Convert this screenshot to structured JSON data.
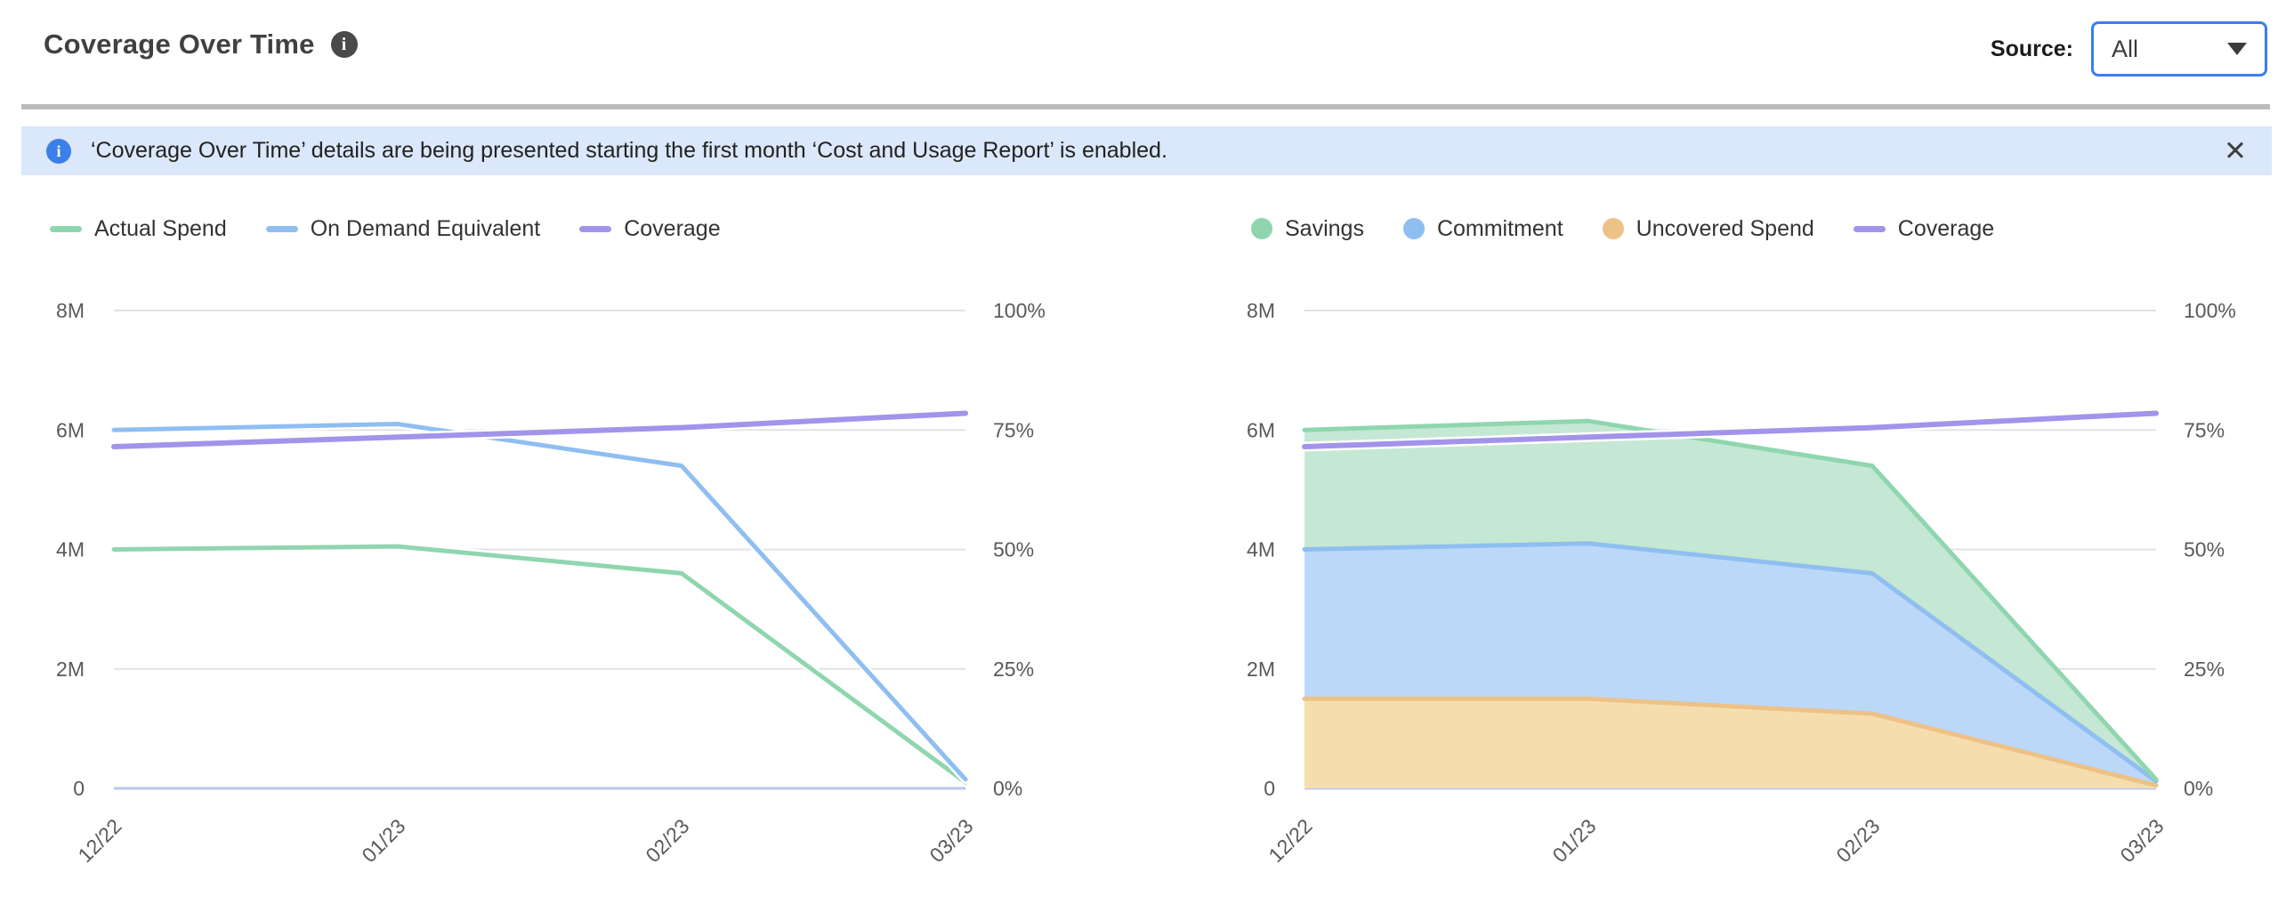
{
  "header": {
    "title": "Coverage Over Time",
    "info_glyph": "i",
    "source_label": "Source:",
    "source_value": "All"
  },
  "banner": {
    "info_glyph": "i",
    "text": "‘Coverage Over Time’ details are being presented starting the first month ‘Cost and Usage Report’ is enabled.",
    "close_glyph": "✕"
  },
  "colors": {
    "green_stroke": "#8fd6af",
    "green_fill": "#c4e8d3",
    "blue_stroke": "#8fbef1",
    "blue_fill": "#bcd8f8",
    "orange_stroke": "#edc287",
    "orange_fill": "#f5ddae",
    "purple_stroke": "#a294ea",
    "grid": "#e3e3e3",
    "zero_line": "#b9c6f0",
    "tick_text": "#595959",
    "banner_bg": "#dbe7fa",
    "banner_icon": "#3d7fe8",
    "title_icon_bg": "#4a4a4a",
    "accent_border": "#3b7df0",
    "divider": "#bcbcbc"
  },
  "chart_data": [
    {
      "type": "line",
      "title": "Coverage Over Time — spend vs on-demand equivalent",
      "categories": [
        "12/22",
        "01/23",
        "02/23",
        "03/23"
      ],
      "series": [
        {
          "name": "Actual Spend",
          "color": "green",
          "unit": "millions",
          "values": [
            4.0,
            4.05,
            3.6,
            0.1
          ]
        },
        {
          "name": "On Demand Equivalent",
          "color": "blue",
          "unit": "millions",
          "values": [
            6.0,
            6.1,
            5.4,
            0.15
          ]
        },
        {
          "name": "Coverage",
          "color": "purple",
          "unit": "percent",
          "values": [
            71.5,
            73.5,
            75.5,
            78.5
          ]
        }
      ],
      "left_axis": {
        "ticks": [
          "8M",
          "6M",
          "4M",
          "2M",
          "0"
        ],
        "range_millions": [
          0,
          8
        ]
      },
      "right_axis": {
        "ticks": [
          "100%",
          "75%",
          "50%",
          "25%",
          "0%"
        ],
        "range_percent": [
          0,
          100
        ]
      },
      "legend_items": [
        {
          "label": "Actual Spend",
          "marker": "line",
          "color": "green"
        },
        {
          "label": "On Demand Equivalent",
          "marker": "line",
          "color": "blue"
        },
        {
          "label": "Coverage",
          "marker": "line",
          "color": "purple"
        }
      ],
      "grid": "horizontal",
      "legend_position": "top-left"
    },
    {
      "type": "area",
      "stacked": true,
      "title": "Coverage Over Time — savings / commitment / uncovered spend",
      "categories": [
        "12/22",
        "01/23",
        "02/23",
        "03/23"
      ],
      "series": [
        {
          "name": "Uncovered Spend",
          "color": "orange",
          "unit": "millions",
          "values": [
            1.5,
            1.5,
            1.25,
            0.05
          ]
        },
        {
          "name": "Commitment",
          "color": "blue",
          "unit": "millions",
          "values": [
            2.5,
            2.6,
            2.35,
            0.07
          ]
        },
        {
          "name": "Savings",
          "color": "green",
          "unit": "millions",
          "values": [
            2.0,
            2.05,
            1.8,
            0.03
          ]
        },
        {
          "name": "Coverage",
          "color": "purple",
          "unit": "percent",
          "values": [
            71.5,
            73.5,
            75.5,
            78.5
          ]
        }
      ],
      "left_axis": {
        "ticks": [
          "8M",
          "6M",
          "4M",
          "2M",
          "0"
        ],
        "range_millions": [
          0,
          8
        ]
      },
      "right_axis": {
        "ticks": [
          "100%",
          "75%",
          "50%",
          "25%",
          "0%"
        ],
        "range_percent": [
          0,
          100
        ]
      },
      "legend_items": [
        {
          "label": "Savings",
          "marker": "circle",
          "color": "green"
        },
        {
          "label": "Commitment",
          "marker": "circle",
          "color": "blue"
        },
        {
          "label": "Uncovered Spend",
          "marker": "circle",
          "color": "orange"
        },
        {
          "label": "Coverage",
          "marker": "line",
          "color": "purple"
        }
      ],
      "grid": "horizontal",
      "legend_position": "top-left"
    }
  ]
}
